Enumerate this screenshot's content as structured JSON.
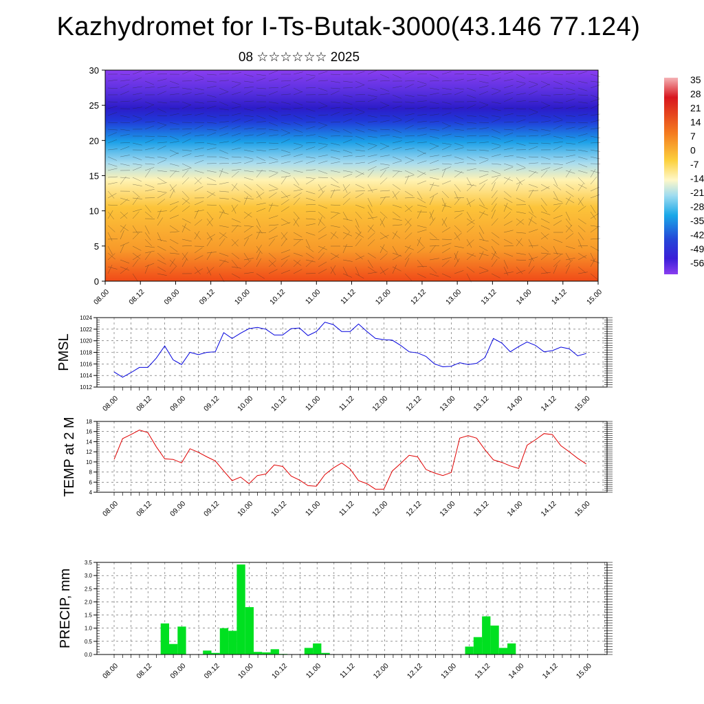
{
  "header": {
    "title": "Kazhydromet for I-Ts-Butak-3000(43.146 77.124)",
    "subtitle": "08 ☆☆☆☆☆☆ 2025"
  },
  "colorbar": {
    "labels": [
      "35",
      "28",
      "21",
      "14",
      "7",
      "0",
      "-7",
      "-14",
      "-21",
      "-28",
      "-35",
      "-42",
      "-49",
      "-56"
    ],
    "colors": [
      "#f4a3a8",
      "#d7191c",
      "#fdae61",
      "#ffffbf",
      "#abd9e9",
      "#2c7bb6",
      "#3a30e0",
      "#7a2ee8"
    ]
  },
  "chart_data": [
    {
      "type": "heatmap",
      "name": "cross-section",
      "ylim": [
        0,
        30
      ],
      "yticks": [
        "0",
        "5",
        "10",
        "15",
        "20",
        "25",
        "30"
      ],
      "xticks": [
        "08.00",
        "08.12",
        "09.00",
        "09.12",
        "10.00",
        "10.12",
        "11.00",
        "11.12",
        "12.00",
        "12.12",
        "13.00",
        "13.12",
        "14.00",
        "14.12",
        "15.00"
      ],
      "grid": false
    },
    {
      "type": "line",
      "ylabel": "PMSL",
      "ylim": [
        1012,
        1024
      ],
      "yticks": [
        "1012",
        "1014",
        "1016",
        "1018",
        "1020",
        "1022",
        "1024"
      ],
      "xticks": [
        "08.00",
        "08.12",
        "09.00",
        "09.12",
        "10.00",
        "10.12",
        "11.00",
        "11.12",
        "12.00",
        "12.12",
        "13.00",
        "13.12",
        "14.00",
        "14.12",
        "15.00"
      ],
      "color": "#0000dd",
      "values": [
        1014.6,
        1013.7,
        1014.5,
        1015.4,
        1015.4,
        1017.0,
        1019.1,
        1016.7,
        1015.9,
        1018.0,
        1017.6,
        1018.0,
        1018.1,
        1021.4,
        1020.4,
        1021.3,
        1022.1,
        1022.3,
        1022.0,
        1021.0,
        1021.0,
        1022.1,
        1022.2,
        1020.9,
        1021.6,
        1023.2,
        1022.8,
        1021.6,
        1021.6,
        1022.9,
        1021.6,
        1020.4,
        1020.2,
        1020.1,
        1019.2,
        1018.1,
        1017.9,
        1017.3,
        1016.0,
        1015.5,
        1015.6,
        1016.2,
        1015.9,
        1016.1,
        1017.1,
        1020.4,
        1019.6,
        1018.1,
        1019.0,
        1019.8,
        1019.2,
        1018.1,
        1018.3,
        1018.9,
        1018.6,
        1017.4,
        1017.8
      ],
      "grid": true
    },
    {
      "type": "line",
      "ylabel": "TEMP at 2 M",
      "ylim": [
        4,
        18
      ],
      "yticks": [
        "4",
        "6",
        "8",
        "10",
        "12",
        "14",
        "16",
        "18"
      ],
      "xticks": [
        "08.00",
        "08.12",
        "09.00",
        "09.12",
        "10.00",
        "10.12",
        "11.00",
        "11.12",
        "12.00",
        "12.12",
        "13.00",
        "13.12",
        "14.00",
        "14.12",
        "15.00"
      ],
      "color": "#e00000",
      "values": [
        10.5,
        14.6,
        15.4,
        16.3,
        15.8,
        13.0,
        10.6,
        10.5,
        9.8,
        12.6,
        11.9,
        11.0,
        10.2,
        8.2,
        6.3,
        7.0,
        5.7,
        7.3,
        7.6,
        9.4,
        9.1,
        7.2,
        6.4,
        5.3,
        5.2,
        7.5,
        8.8,
        9.8,
        8.6,
        6.3,
        5.7,
        4.6,
        4.6,
        8.2,
        9.7,
        11.3,
        11.0,
        8.5,
        7.8,
        7.3,
        7.9,
        14.7,
        15.2,
        14.7,
        12.4,
        10.4,
        9.9,
        9.2,
        8.7,
        13.3,
        14.4,
        15.6,
        15.4,
        13.2,
        12.0,
        10.7,
        9.6
      ],
      "grid": true
    },
    {
      "type": "bar",
      "ylabel": "PRECIP, mm",
      "ylim": [
        0,
        3.5
      ],
      "yticks": [
        "0.0",
        "0.5",
        "1.0",
        "1.5",
        "2.0",
        "2.5",
        "3.0",
        "3.5"
      ],
      "xticks": [
        "08.00",
        "08.12",
        "09.00",
        "09.12",
        "10.00",
        "10.12",
        "11.00",
        "11.12",
        "12.00",
        "12.12",
        "13.00",
        "13.12",
        "14.00",
        "14.12",
        "15.00"
      ],
      "color": "#00e020",
      "values": [
        0,
        0,
        0,
        0,
        0,
        0,
        1.18,
        0.4,
        1.06,
        0,
        0,
        0.15,
        0.06,
        1.0,
        0.9,
        3.42,
        1.8,
        0.1,
        0.08,
        0.2,
        0.02,
        0,
        0,
        0.25,
        0.42,
        0.06,
        0,
        0,
        0,
        0,
        0,
        0,
        0,
        0,
        0,
        0,
        0,
        0,
        0,
        0,
        0,
        0,
        0.3,
        0.66,
        1.45,
        1.1,
        0.25,
        0.42,
        0,
        0,
        0,
        0,
        0,
        0,
        0,
        0,
        0
      ],
      "grid": true
    }
  ]
}
